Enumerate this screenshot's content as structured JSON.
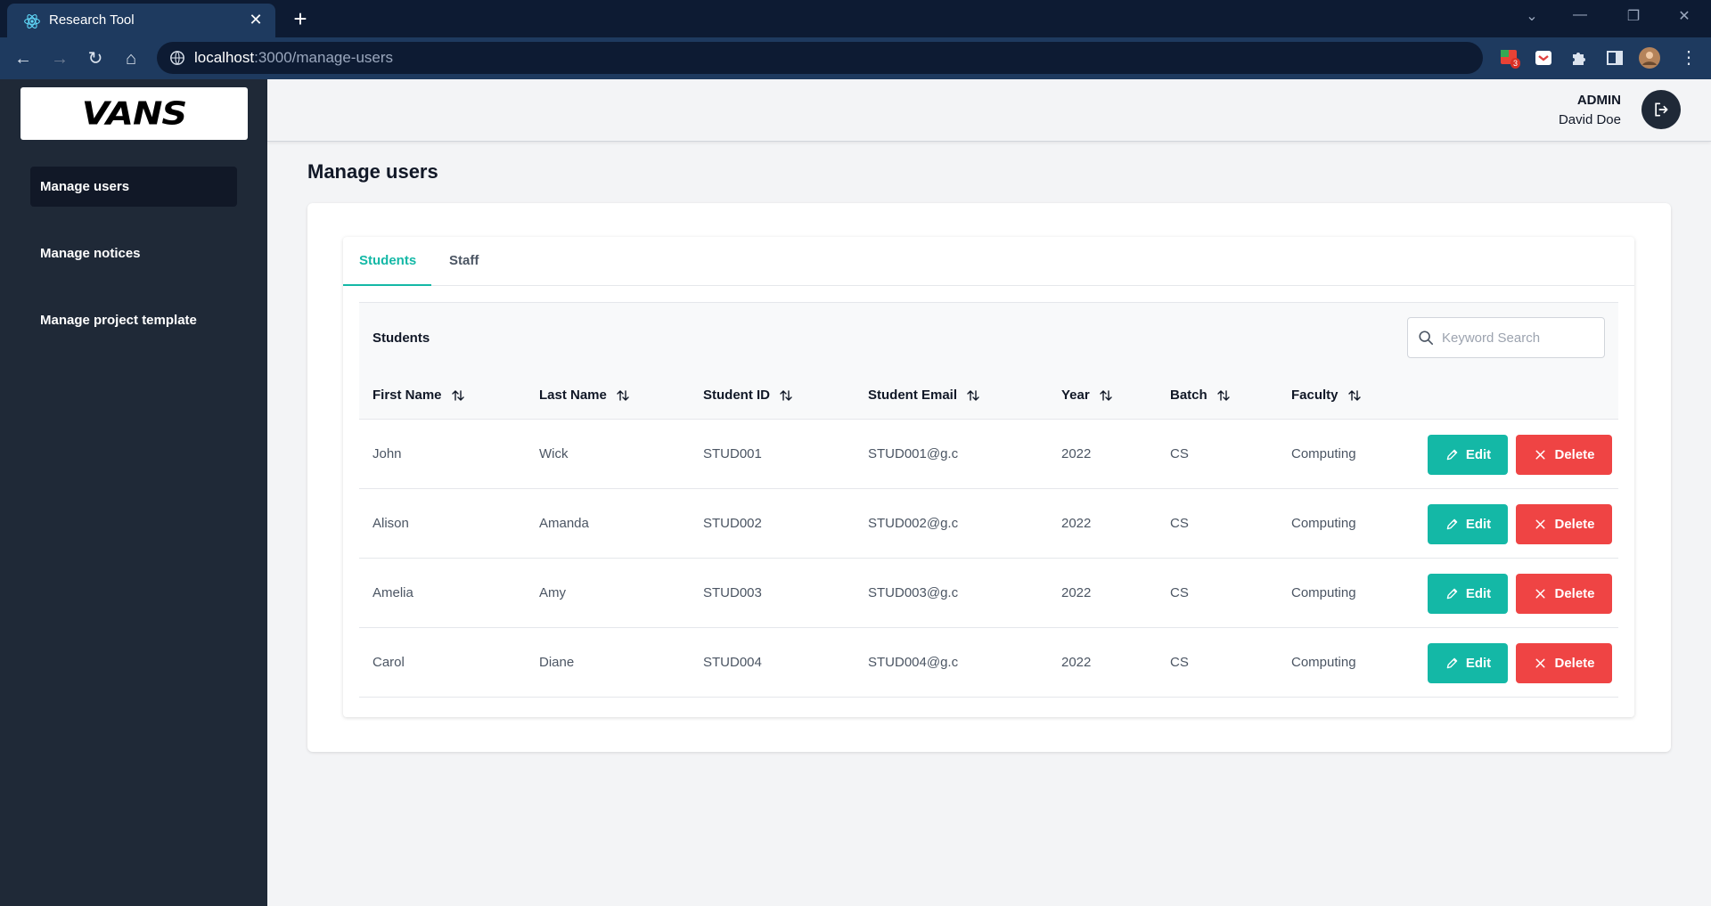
{
  "browser": {
    "tab_title": "Research Tool",
    "url_host": "localhost",
    "url_rest": ":3000/manage-users",
    "extension_badge": "3"
  },
  "brand": {
    "logo_text": "VANS"
  },
  "sidebar": {
    "items": [
      {
        "label": "Manage users",
        "active": true
      },
      {
        "label": "Manage notices",
        "active": false
      },
      {
        "label": "Manage project template",
        "active": false
      }
    ]
  },
  "header": {
    "role": "ADMIN",
    "user_name": "David Doe"
  },
  "page": {
    "title": "Manage users"
  },
  "tabs": [
    {
      "label": "Students",
      "active": true
    },
    {
      "label": "Staff",
      "active": false
    }
  ],
  "table": {
    "caption": "Students",
    "search_placeholder": "Keyword Search",
    "columns": [
      "First Name",
      "Last Name",
      "Student ID",
      "Student Email",
      "Year",
      "Batch",
      "Faculty"
    ],
    "edit_label": "Edit",
    "delete_label": "Delete",
    "rows": [
      [
        "John",
        "Wick",
        "STUD001",
        "STUD001@g.c",
        "2022",
        "CS",
        "Computing"
      ],
      [
        "Alison",
        "Amanda",
        "STUD002",
        "STUD002@g.c",
        "2022",
        "CS",
        "Computing"
      ],
      [
        "Amelia",
        "Amy",
        "STUD003",
        "STUD003@g.c",
        "2022",
        "CS",
        "Computing"
      ],
      [
        "Carol",
        "Diane",
        "STUD004",
        "STUD004@g.c",
        "2022",
        "CS",
        "Computing"
      ]
    ]
  },
  "colors": {
    "accent": "#14b8a6",
    "danger": "#ef4444",
    "sidebar": "#1f2937"
  }
}
